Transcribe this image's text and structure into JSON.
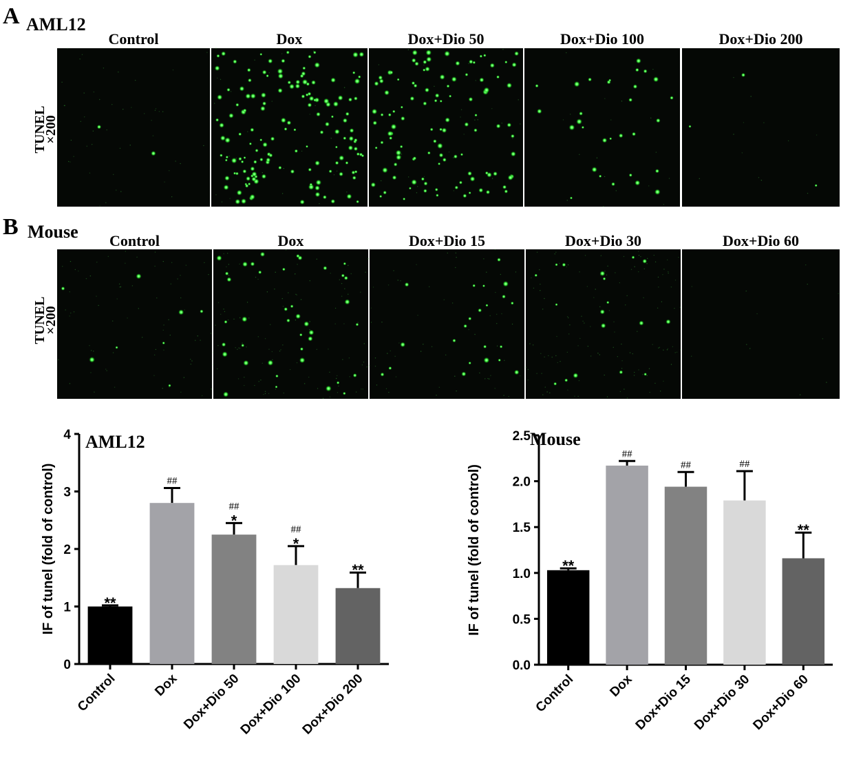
{
  "panel_a": {
    "letter": "A",
    "title": "AML12",
    "row_label_top": "TUNEL",
    "row_label_bottom": "×200",
    "columns": [
      "Control",
      "Dox",
      "Dox+Dio 50",
      "Dox+Dio 100",
      "Dox+Dio 200"
    ],
    "images": [
      {
        "dots": 2,
        "haze": 0.08
      },
      {
        "dots": 150,
        "haze": 0.05
      },
      {
        "dots": 110,
        "haze": 0.05
      },
      {
        "dots": 30,
        "haze": 0.03
      },
      {
        "dots": 3,
        "haze": 0.02
      }
    ]
  },
  "panel_b": {
    "letter": "B",
    "title": "Mouse",
    "row_label_top": "TUNEL",
    "row_label_bottom": "×200",
    "columns": [
      "Control",
      "Dox",
      "Dox+Dio 15",
      "Dox+Dio 30",
      "Dox+Dio 60"
    ],
    "images": [
      {
        "dots": 8,
        "haze": 0.12
      },
      {
        "dots": 40,
        "haze": 0.18
      },
      {
        "dots": 22,
        "haze": 0.1
      },
      {
        "dots": 18,
        "haze": 0.22
      },
      {
        "dots": 0,
        "haze": 0.02
      }
    ]
  },
  "colors": {
    "dot": "#3cff3c",
    "image_bg": "#050805",
    "bar_fills": [
      "#000000",
      "#a3a3a8",
      "#828282",
      "#d9d9d9",
      "#636363"
    ]
  },
  "chart_data": [
    {
      "type": "bar",
      "title": "AML12",
      "ylabel": "IF of tunel (fold of control)",
      "xlabel": "",
      "ylim": [
        0,
        4
      ],
      "yticks": [
        "0",
        "1",
        "2",
        "3",
        "4"
      ],
      "categories": [
        "Control",
        "Dox",
        "Dox+Dio 50",
        "Dox+Dio 100",
        "Dox+Dio 200"
      ],
      "values": [
        1.0,
        2.8,
        2.25,
        1.72,
        1.32
      ],
      "errors": [
        0.02,
        0.26,
        0.2,
        0.33,
        0.27
      ],
      "annotations": [
        [
          "**"
        ],
        [
          "##"
        ],
        [
          "##",
          "*"
        ],
        [
          "##",
          "*"
        ],
        [
          "**"
        ]
      ],
      "grid": false
    },
    {
      "type": "bar",
      "title": "Mouse",
      "ylabel": "IF of tunel (fold of control)",
      "xlabel": "",
      "ylim": [
        0,
        2.5
      ],
      "yticks": [
        "0.0",
        "0.5",
        "1.0",
        "1.5",
        "2.0",
        "2.5"
      ],
      "categories": [
        "Control",
        "Dox",
        "Dox+Dio 15",
        "Dox+Dio 30",
        "Dox+Dio 60"
      ],
      "values": [
        1.03,
        2.17,
        1.94,
        1.79,
        1.16
      ],
      "errors": [
        0.02,
        0.05,
        0.16,
        0.32,
        0.28
      ],
      "annotations": [
        [
          "**"
        ],
        [
          "##"
        ],
        [
          "##"
        ],
        [
          "##"
        ],
        [
          "**"
        ]
      ],
      "grid": false
    }
  ]
}
